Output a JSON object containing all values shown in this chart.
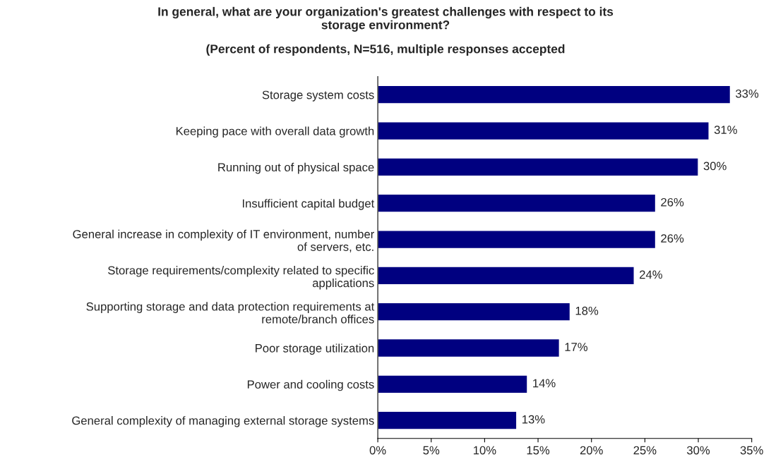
{
  "chart_data": {
    "type": "bar",
    "orientation": "horizontal",
    "title": "In general, what are your organization's greatest challenges with respect to its\nstorage environment?",
    "subtitle": "(Percent of respondents, N=516, multiple responses accepted",
    "categories": [
      "Storage system costs",
      "Keeping pace with overall data growth",
      "Running out of physical space",
      "Insufficient capital budget",
      "General increase in complexity of IT environment, number\nof servers, etc.",
      "Storage requirements/complexity related to specific\napplications",
      "Supporting storage and data protection requirements at\nremote/branch offices",
      "Poor storage utilization",
      "Power and cooling costs",
      "General complexity of managing external storage systems"
    ],
    "values": [
      33,
      31,
      30,
      26,
      26,
      24,
      18,
      17,
      14,
      13
    ],
    "value_labels": [
      "33%",
      "31%",
      "30%",
      "26%",
      "26%",
      "24%",
      "18%",
      "17%",
      "14%",
      "13%"
    ],
    "color": "#000080",
    "xlim": [
      0,
      35
    ],
    "xticks": [
      {
        "value": 0,
        "label": "0%"
      },
      {
        "value": 5,
        "label": "5%"
      },
      {
        "value": 10,
        "label": "10%"
      },
      {
        "value": 15,
        "label": "15%"
      },
      {
        "value": 20,
        "label": "20%"
      },
      {
        "value": 25,
        "label": "25%"
      },
      {
        "value": 30,
        "label": "30%"
      },
      {
        "value": 35,
        "label": "35%"
      }
    ],
    "grid": false,
    "legend": false
  }
}
